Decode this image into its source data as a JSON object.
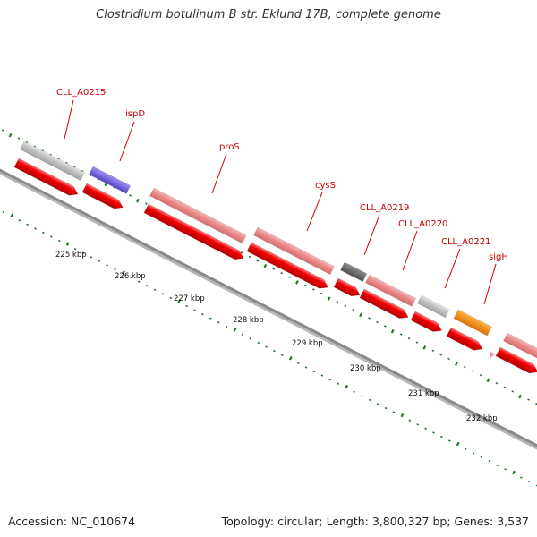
{
  "title": "Clostridium botulinum B str. Eklund 17B, complete genome",
  "footer": {
    "accession": "Accession: NC_010674",
    "summary": "Topology: circular; Length: 3,800,327 bp; Genes: 3,537"
  },
  "colors": {
    "backbone": "#8a8a8a",
    "cds_red": "#ee0000",
    "pink": "#e88a8a",
    "grey": "#bdbdbd",
    "dark_grey": "#666666",
    "purple": "#7766dd",
    "orange": "#ff8800",
    "tick_green": "#227722",
    "label_red": "#cc0000"
  },
  "kbp_labels": [
    "225 kbp",
    "226 kbp",
    "227 kbp",
    "228 kbp",
    "229 kbp",
    "230 kbp",
    "231 kbp",
    "232 kbp"
  ],
  "gene_labels": [
    {
      "name": "CLL_A0215"
    },
    {
      "name": "ispD"
    },
    {
      "name": "proS"
    },
    {
      "name": "cysS"
    },
    {
      "name": "CLL_A0219"
    },
    {
      "name": "CLL_A0220"
    },
    {
      "name": "CLL_A0221"
    },
    {
      "name": "sigH"
    }
  ]
}
